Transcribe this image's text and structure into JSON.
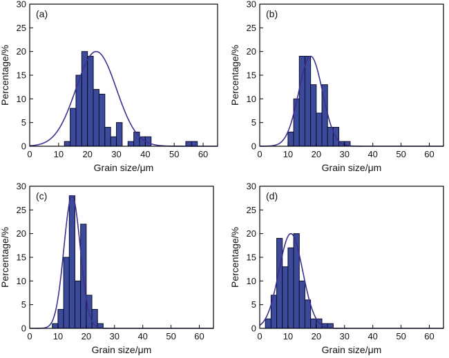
{
  "style": {
    "bar_color": "#3b4a9b",
    "bar_edge": "#0d0d2a",
    "curve_color": "#3d2f8f"
  },
  "chart_data": [
    {
      "panel_label": "(a)",
      "type": "bar",
      "xlabel": "Grain size/μm",
      "ylabel": "Percentage/%",
      "xlim": [
        0,
        65
      ],
      "ylim": [
        0,
        30
      ],
      "xticks": [
        0,
        10,
        20,
        30,
        40,
        50,
        60
      ],
      "yticks": [
        0,
        5,
        10,
        15,
        20,
        25,
        30
      ],
      "bin_width": 2,
      "bins": [
        {
          "x": 12,
          "value": 1
        },
        {
          "x": 14,
          "value": 8
        },
        {
          "x": 16,
          "value": 15
        },
        {
          "x": 18,
          "value": 20
        },
        {
          "x": 20,
          "value": 19
        },
        {
          "x": 22,
          "value": 12
        },
        {
          "x": 24,
          "value": 11
        },
        {
          "x": 26,
          "value": 4
        },
        {
          "x": 28,
          "value": 2
        },
        {
          "x": 30,
          "value": 5
        },
        {
          "x": 34,
          "value": 1
        },
        {
          "x": 36,
          "value": 3
        },
        {
          "x": 38,
          "value": 2
        },
        {
          "x": 40,
          "value": 2
        },
        {
          "x": 54,
          "value": 1
        },
        {
          "x": 56,
          "value": 1
        }
      ],
      "fit_curve": {
        "type": "gaussian",
        "mean": 23,
        "sigma": 7,
        "peak": 20
      }
    },
    {
      "panel_label": "(b)",
      "type": "bar",
      "xlabel": "Grain size/μm",
      "ylabel": "Percentage/%",
      "xlim": [
        0,
        65
      ],
      "ylim": [
        0,
        30
      ],
      "xticks": [
        0,
        10,
        20,
        30,
        40,
        50,
        60
      ],
      "yticks": [
        0,
        5,
        10,
        15,
        20,
        25,
        30
      ],
      "bin_width": 2,
      "bins": [
        {
          "x": 10,
          "value": 3
        },
        {
          "x": 12,
          "value": 10
        },
        {
          "x": 14,
          "value": 19
        },
        {
          "x": 16,
          "value": 19
        },
        {
          "x": 18,
          "value": 13
        },
        {
          "x": 20,
          "value": 7
        },
        {
          "x": 22,
          "value": 13
        },
        {
          "x": 24,
          "value": 4
        },
        {
          "x": 26,
          "value": 4
        },
        {
          "x": 28,
          "value": 1
        },
        {
          "x": 30,
          "value": 1
        }
      ],
      "fit_curve": {
        "type": "gaussian",
        "mean": 18,
        "sigma": 4.2,
        "peak": 19
      }
    },
    {
      "panel_label": "(c)",
      "type": "bar",
      "xlabel": "Grain size/μm",
      "ylabel": "Percentage/%",
      "xlim": [
        0,
        65
      ],
      "ylim": [
        0,
        30
      ],
      "xticks": [
        0,
        10,
        20,
        30,
        40,
        50,
        60
      ],
      "yticks": [
        0,
        5,
        10,
        15,
        20,
        25,
        30
      ],
      "bin_width": 2,
      "bins": [
        {
          "x": 8,
          "value": 1
        },
        {
          "x": 10,
          "value": 4
        },
        {
          "x": 12,
          "value": 15
        },
        {
          "x": 14,
          "value": 28
        },
        {
          "x": 16,
          "value": 10
        },
        {
          "x": 18,
          "value": 22
        },
        {
          "x": 20,
          "value": 7
        },
        {
          "x": 22,
          "value": 4
        },
        {
          "x": 24,
          "value": 1
        }
      ],
      "fit_curve": {
        "type": "gaussian",
        "mean": 15,
        "sigma": 2.9,
        "peak": 28
      }
    },
    {
      "panel_label": "(d)",
      "type": "bar",
      "xlabel": "Grain size/μm",
      "ylabel": "Percentage/%",
      "xlim": [
        0,
        65
      ],
      "ylim": [
        0,
        30
      ],
      "xticks": [
        0,
        10,
        20,
        30,
        40,
        50,
        60
      ],
      "yticks": [
        0,
        5,
        10,
        15,
        20,
        25,
        30
      ],
      "bin_width": 2,
      "bins": [
        {
          "x": 2,
          "value": 2
        },
        {
          "x": 4,
          "value": 7
        },
        {
          "x": 6,
          "value": 19
        },
        {
          "x": 8,
          "value": 13
        },
        {
          "x": 10,
          "value": 17
        },
        {
          "x": 12,
          "value": 20
        },
        {
          "x": 14,
          "value": 10
        },
        {
          "x": 16,
          "value": 6
        },
        {
          "x": 18,
          "value": 2
        },
        {
          "x": 20,
          "value": 2
        },
        {
          "x": 22,
          "value": 1
        },
        {
          "x": 24,
          "value": 1
        }
      ],
      "fit_curve": {
        "type": "gaussian",
        "mean": 11,
        "sigma": 4.2,
        "peak": 20
      }
    }
  ]
}
